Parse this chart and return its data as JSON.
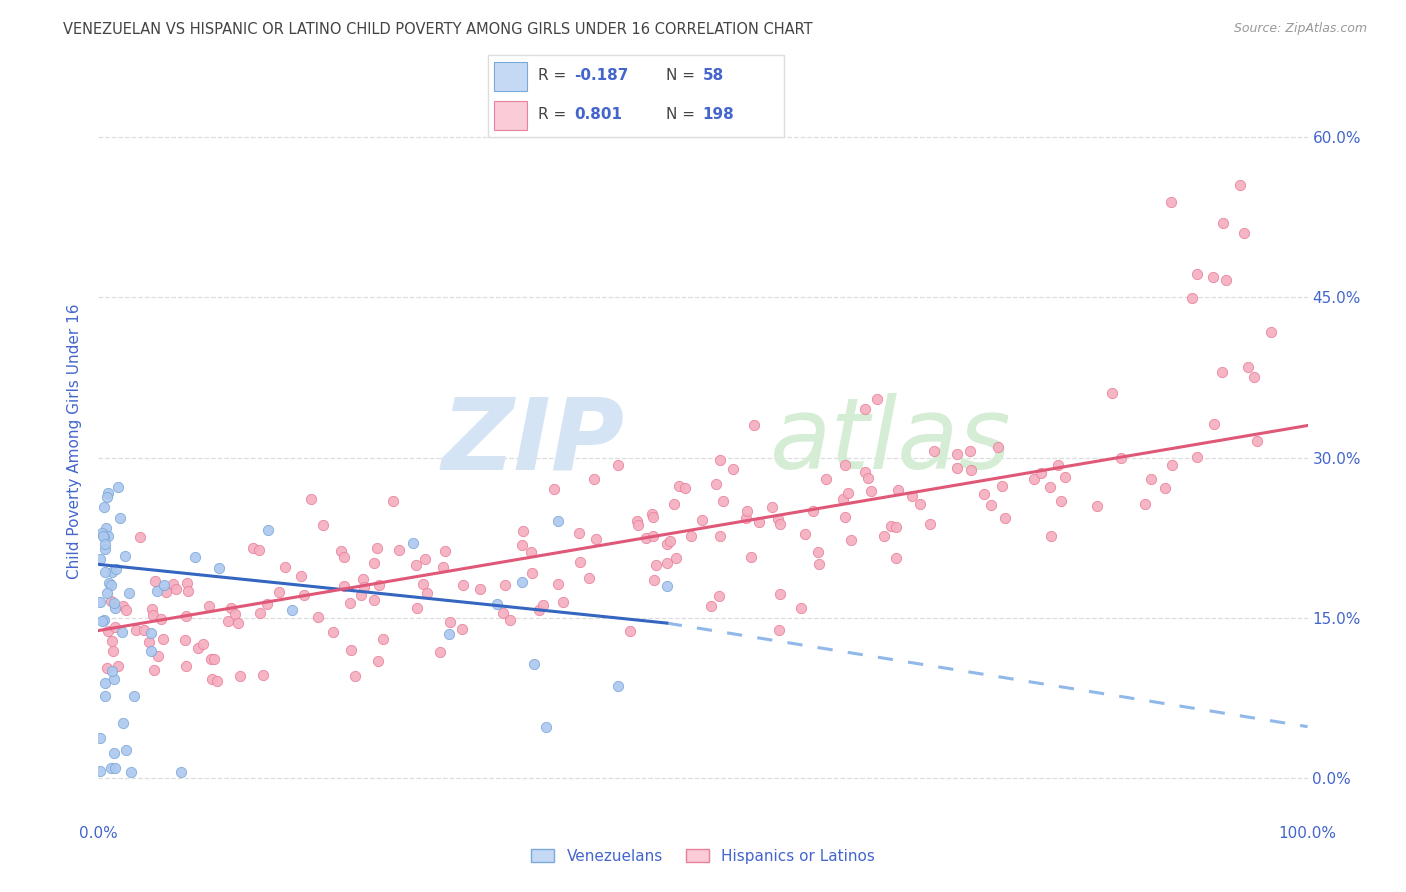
{
  "title": "VENEZUELAN VS HISPANIC OR LATINO CHILD POVERTY AMONG GIRLS UNDER 16 CORRELATION CHART",
  "source": "Source: ZipAtlas.com",
  "ylabel": "Child Poverty Among Girls Under 16",
  "xlim": [
    0.0,
    1.0
  ],
  "ylim": [
    -0.04,
    0.67
  ],
  "yticks": [
    0.0,
    0.15,
    0.3,
    0.45,
    0.6
  ],
  "ytick_labels": [
    "0.0%",
    "15.0%",
    "30.0%",
    "45.0%",
    "60.0%"
  ],
  "xtick_labels": [
    "0.0%",
    "100.0%"
  ],
  "venezuelan_color": "#adc8ee",
  "hispanic_color": "#f5afc0",
  "venezuelan_edge": "#7aa8d8",
  "hispanic_edge": "#e8809a",
  "line_blue": "#3465c0",
  "line_pink": "#e05878",
  "line_dashed_color": "#90b8e8",
  "legend_box_blue": "#c5d9f5",
  "legend_box_pink": "#f9ccd8",
  "legend_border": "#dddddd",
  "R_venezuelan": -0.187,
  "N_venezuelan": 58,
  "R_hispanic": 0.801,
  "N_hispanic": 198,
  "title_color": "#444444",
  "source_color": "#999999",
  "tick_color": "#4466cc",
  "ylabel_color": "#4466cc",
  "watermark_zip_color": "#d5e4f5",
  "watermark_atlas_color": "#d5ecd5",
  "grid_color": "#dddddd",
  "ven_line_x_solid_end": 0.47,
  "his_line_start_y": 0.138,
  "his_line_end_y": 0.33,
  "ven_line_start_y": 0.2,
  "ven_line_end_y": 0.145,
  "ven_line_dash_end_y": 0.048
}
